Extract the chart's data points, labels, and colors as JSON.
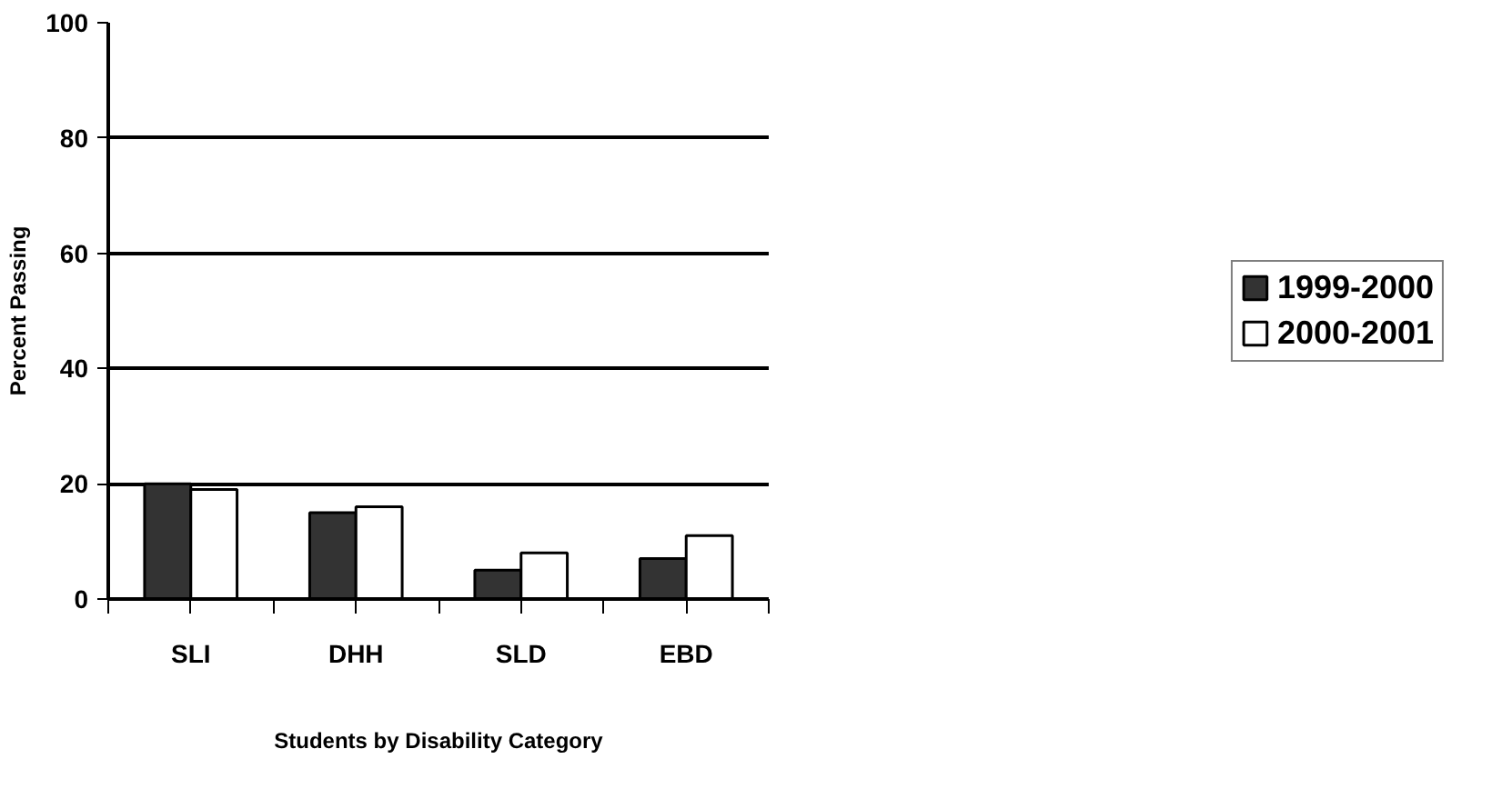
{
  "chart_data": {
    "type": "bar",
    "xlabel": "Students by Disability Category",
    "ylabel": "Percent Passing",
    "categories": [
      "SLI",
      "DHH",
      "SLD",
      "EBD"
    ],
    "series": [
      {
        "name": "1999-2000",
        "color": "#333333",
        "values": [
          20,
          15,
          5,
          7
        ]
      },
      {
        "name": "2000-2001",
        "color": "#ffffff",
        "values": [
          19,
          16,
          8,
          11
        ]
      }
    ],
    "ylim": [
      0,
      100
    ],
    "yticks": [
      0,
      20,
      40,
      60,
      80,
      100
    ],
    "grid": "y",
    "legend": "right"
  }
}
